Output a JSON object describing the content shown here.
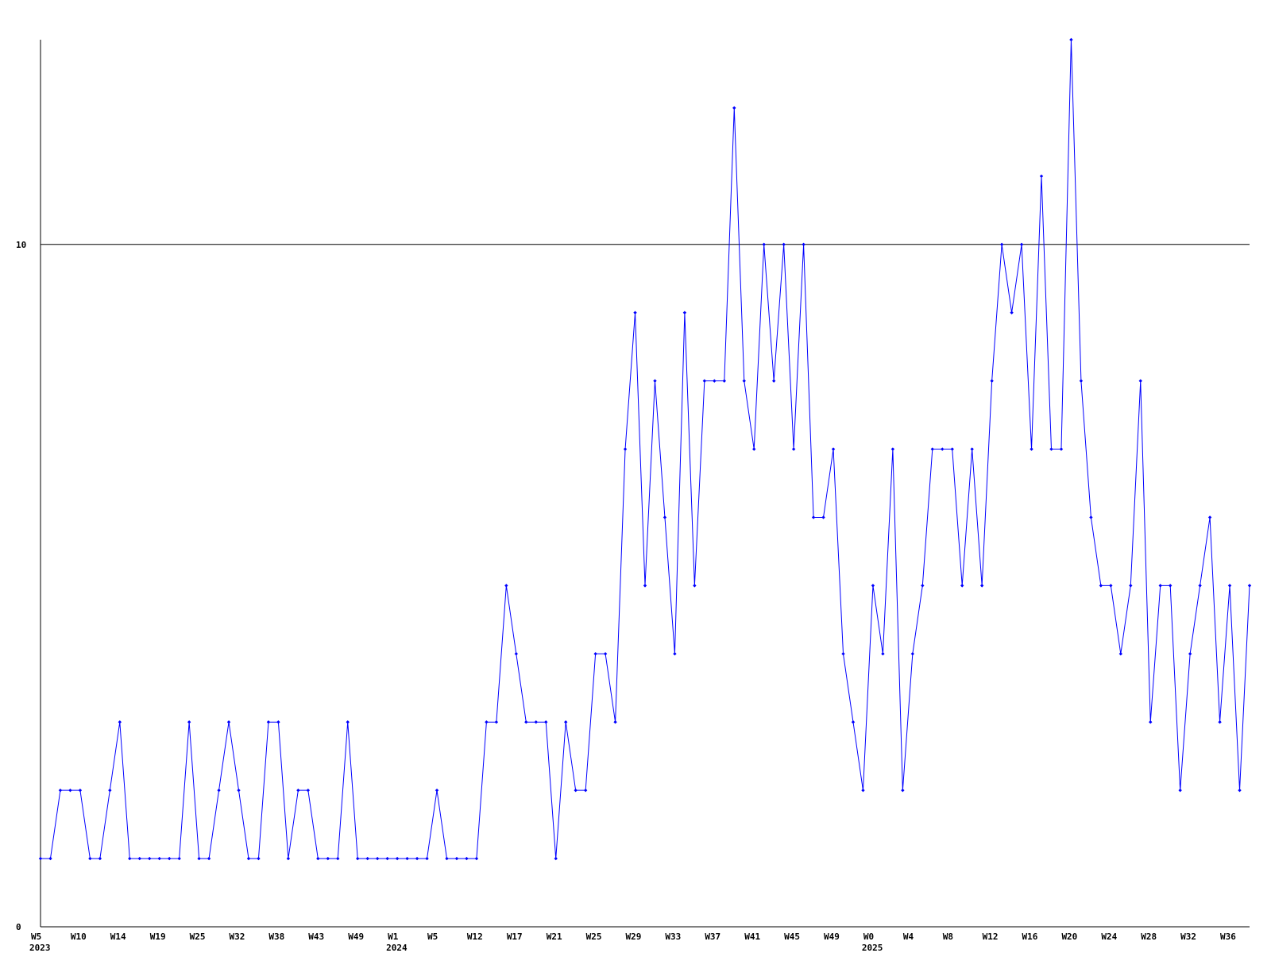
{
  "chart_data": {
    "type": "line",
    "categories": [
      "W5\n2023",
      null,
      null,
      null,
      "W10",
      null,
      null,
      null,
      "W14",
      null,
      null,
      null,
      "W19",
      null,
      null,
      null,
      "W25",
      null,
      null,
      null,
      "W32",
      null,
      null,
      null,
      "W38",
      null,
      null,
      null,
      "W43",
      null,
      null,
      null,
      "W49",
      null,
      null,
      null,
      "W1\n2024",
      null,
      null,
      null,
      "W5",
      null,
      null,
      null,
      "W12",
      null,
      null,
      null,
      "W17",
      null,
      null,
      null,
      "W21",
      null,
      null,
      null,
      "W25",
      null,
      null,
      null,
      "W29",
      null,
      null,
      null,
      "W33",
      null,
      null,
      null,
      "W37",
      null,
      null,
      null,
      "W41",
      null,
      null,
      null,
      "W45",
      null,
      null,
      null,
      "W49",
      null,
      null,
      null,
      "W0\n2025",
      null,
      null,
      null,
      "W4",
      null,
      null,
      null,
      "W8",
      null,
      null,
      null,
      "W12",
      null,
      null,
      null,
      "W16",
      null,
      null,
      null,
      "W20",
      null,
      null,
      null,
      "W24",
      null,
      null,
      null,
      "W28",
      null,
      null,
      null,
      "W32",
      null,
      null,
      null,
      "W36",
      null,
      null
    ],
    "series": [
      {
        "color": "#0000ff",
        "values": [
          1,
          1,
          2,
          2,
          2,
          1,
          1,
          2,
          3,
          1,
          1,
          1,
          1,
          1,
          1,
          3,
          1,
          1,
          2,
          3,
          2,
          1,
          1,
          3,
          3,
          1,
          2,
          2,
          1,
          1,
          1,
          3,
          1,
          1,
          1,
          1,
          1,
          1,
          1,
          1,
          2,
          1,
          1,
          1,
          1,
          3,
          3,
          5,
          4,
          3,
          3,
          3,
          1,
          3,
          2,
          2,
          4,
          4,
          3,
          7,
          9,
          5,
          8,
          6,
          4,
          9,
          5,
          8,
          8,
          8,
          12,
          8,
          7,
          10,
          8,
          10,
          7,
          10,
          6,
          6,
          7,
          4,
          3,
          2,
          5,
          4,
          7,
          2,
          4,
          5,
          7,
          7,
          7,
          5,
          7,
          5,
          8,
          10,
          9,
          10,
          7,
          11,
          7,
          7,
          13,
          8,
          6,
          5,
          5,
          4,
          5,
          8,
          3,
          5,
          5,
          2,
          4,
          5,
          6,
          3,
          5,
          2,
          5
        ]
      }
    ],
    "ylim": [
      0,
      13
    ],
    "yticks": [
      0,
      10
    ],
    "grid": true
  }
}
